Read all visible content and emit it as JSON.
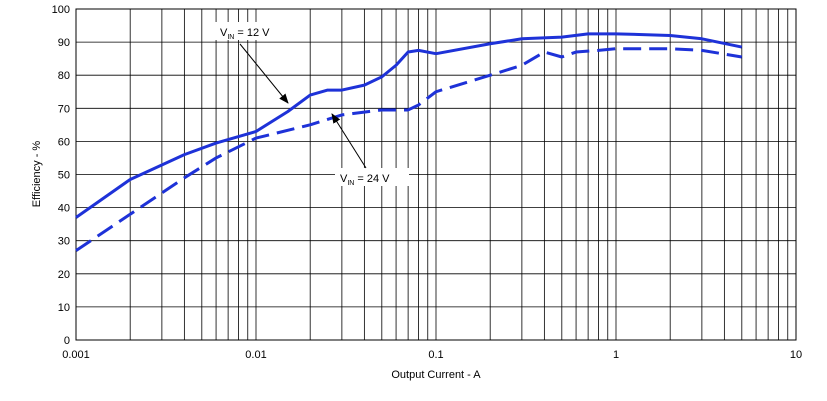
{
  "chart_data": {
    "type": "line",
    "xlabel": "Output Current - A",
    "ylabel": "Efficiency - %",
    "xscale": "log",
    "xlim": [
      0.001,
      10
    ],
    "xticks": [
      0.001,
      0.01,
      0.1,
      1,
      10
    ],
    "ylim": [
      0,
      100
    ],
    "yticks": [
      0,
      10,
      20,
      30,
      40,
      50,
      60,
      70,
      80,
      90,
      100
    ],
    "grid": true,
    "series": [
      {
        "color": "#1e32d8",
        "style": "solid",
        "x": [
          0.001,
          0.002,
          0.004,
          0.006,
          0.01,
          0.015,
          0.02,
          0.025,
          0.03,
          0.04,
          0.05,
          0.06,
          0.07,
          0.08,
          0.1,
          0.2,
          0.3,
          0.5,
          0.7,
          1,
          2,
          3,
          5
        ],
        "values": [
          37,
          48.5,
          56,
          59.5,
          63,
          69,
          74,
          75.5,
          75.5,
          77,
          79.5,
          83,
          87,
          87.5,
          86.5,
          89.5,
          91,
          91.5,
          92.5,
          92.5,
          92,
          91,
          88.5
        ]
      },
      {
        "color": "#1e32d8",
        "style": "dashed",
        "x": [
          0.001,
          0.002,
          0.004,
          0.006,
          0.01,
          0.02,
          0.03,
          0.05,
          0.07,
          0.08,
          0.1,
          0.2,
          0.3,
          0.4,
          0.5,
          0.6,
          0.8,
          1,
          2,
          3,
          5
        ],
        "values": [
          27,
          38,
          49,
          55,
          61,
          65,
          68,
          69.5,
          69.5,
          71,
          75,
          80,
          83,
          87,
          85.5,
          87,
          87.5,
          88,
          88,
          87.5,
          85.5
        ]
      }
    ],
    "annotations": [
      {
        "prefix": "V",
        "subscript": "IN",
        "suffix": " = 12 V"
      },
      {
        "prefix": "V",
        "subscript": "IN",
        "suffix": " = 24 V"
      }
    ]
  }
}
